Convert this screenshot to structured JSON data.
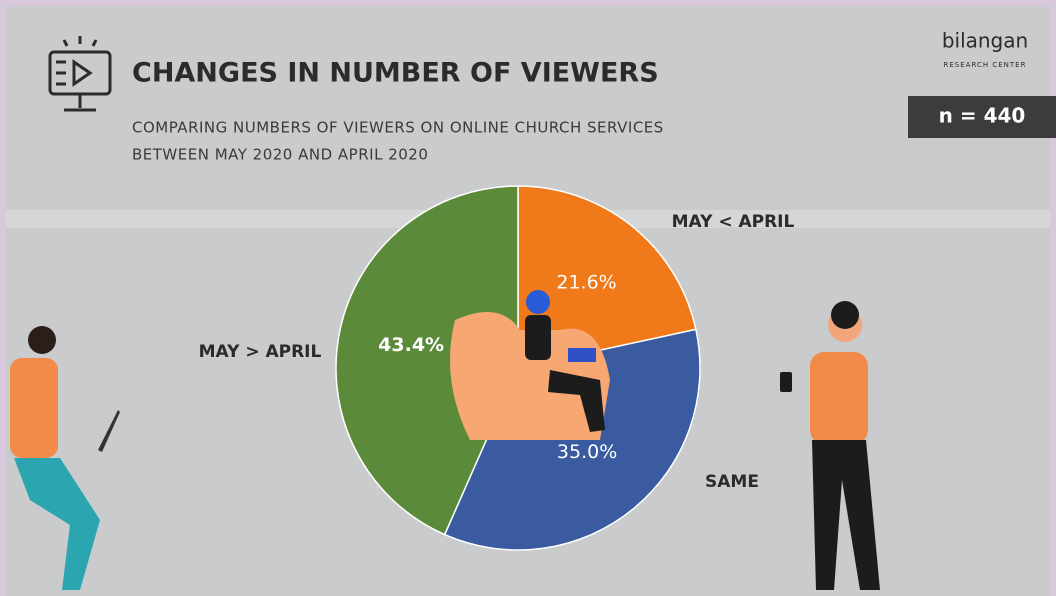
{
  "chart_data": {
    "type": "pie",
    "title": "CHANGES IN NUMBER OF VIEWERS",
    "subtitle": [
      "COMPARING NUMBERS OF VIEWERS ON ONLINE CHURCH SERVICES",
      "BETWEEN MAY 2020 AND APRIL 2020"
    ],
    "brand": "bilangan",
    "brand_tagline": "RESEARCH CENTER",
    "sample_size_label": "n = 440",
    "categories": [
      "MAY < APRIL",
      "SAME",
      "MAY > APRIL"
    ],
    "values": [
      21.6,
      35.0,
      43.4
    ],
    "value_labels": [
      "21.6%",
      "35.0%",
      "43.4%"
    ],
    "colors": [
      "#f07a1a",
      "#3a5ba0",
      "#5b8a3a"
    ]
  }
}
